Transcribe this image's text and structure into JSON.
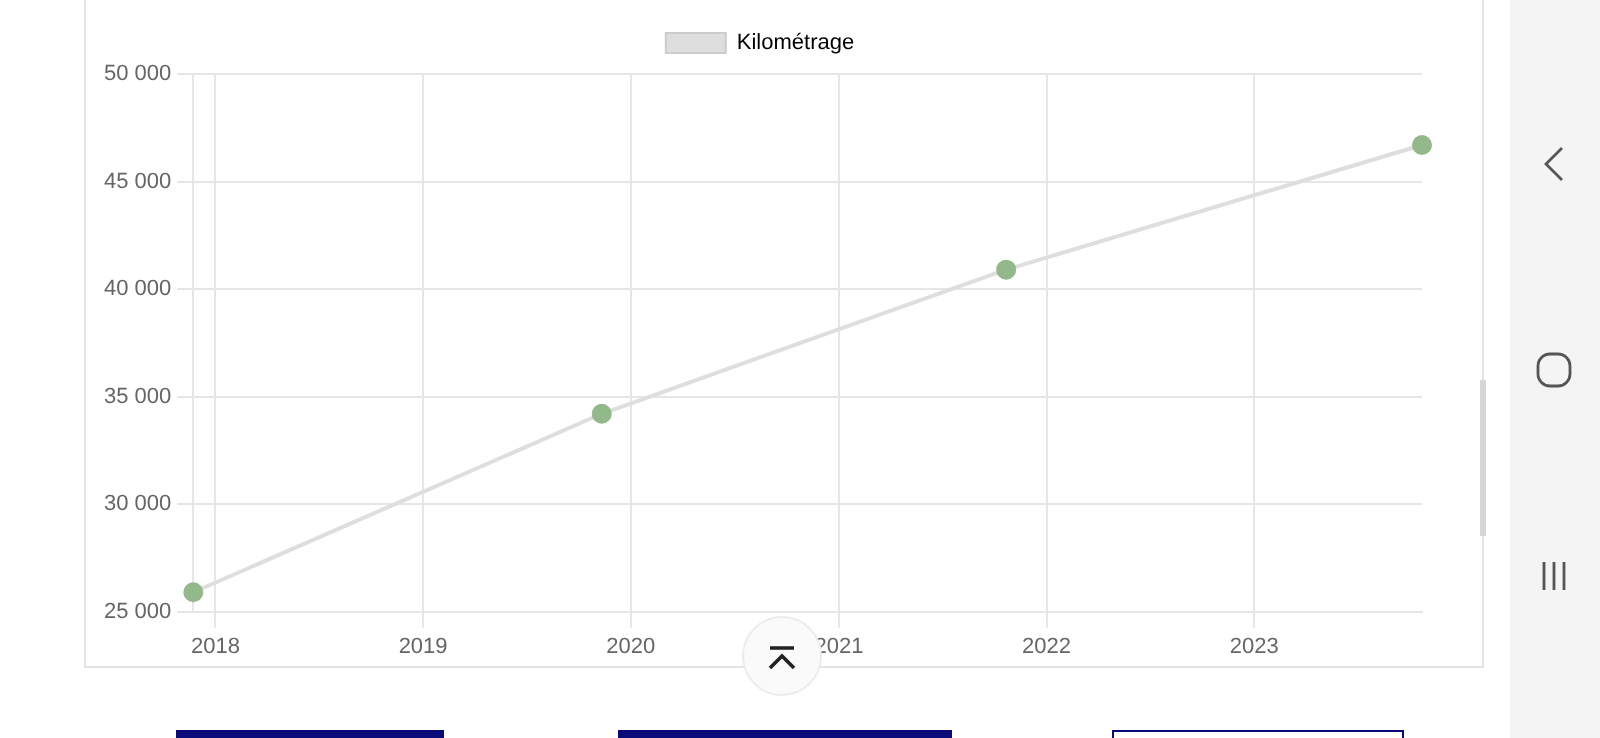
{
  "chart_data": {
    "type": "line",
    "x": [
      "2017-11-23",
      "2019-11-11",
      "2021-10-22",
      "2023-10-23"
    ],
    "series": [
      {
        "name": "Kilométrage",
        "color": "#dedede",
        "colors": [
          "#93b98a",
          "#93b98a",
          "#93b98a",
          "#93b98a"
        ],
        "values": [
          25900,
          34200,
          40900,
          46700
        ]
      }
    ],
    "xlim": [
      "2017-11-23",
      "2023-10-23"
    ],
    "xticks": [
      "2018",
      "2019",
      "2020",
      "2021",
      "2022",
      "2023"
    ],
    "ylim": [
      25000,
      50000
    ],
    "yticks": [
      {
        "value": 25000,
        "label": "25 000"
      },
      {
        "value": 30000,
        "label": "30 000"
      },
      {
        "value": 35000,
        "label": "35 000"
      },
      {
        "value": 40000,
        "label": "40 000"
      },
      {
        "value": 45000,
        "label": "45 000"
      },
      {
        "value": 50000,
        "label": "50 000"
      }
    ],
    "grid": true,
    "legend": "top",
    "marker": "circle",
    "line_style": "solid"
  }
}
